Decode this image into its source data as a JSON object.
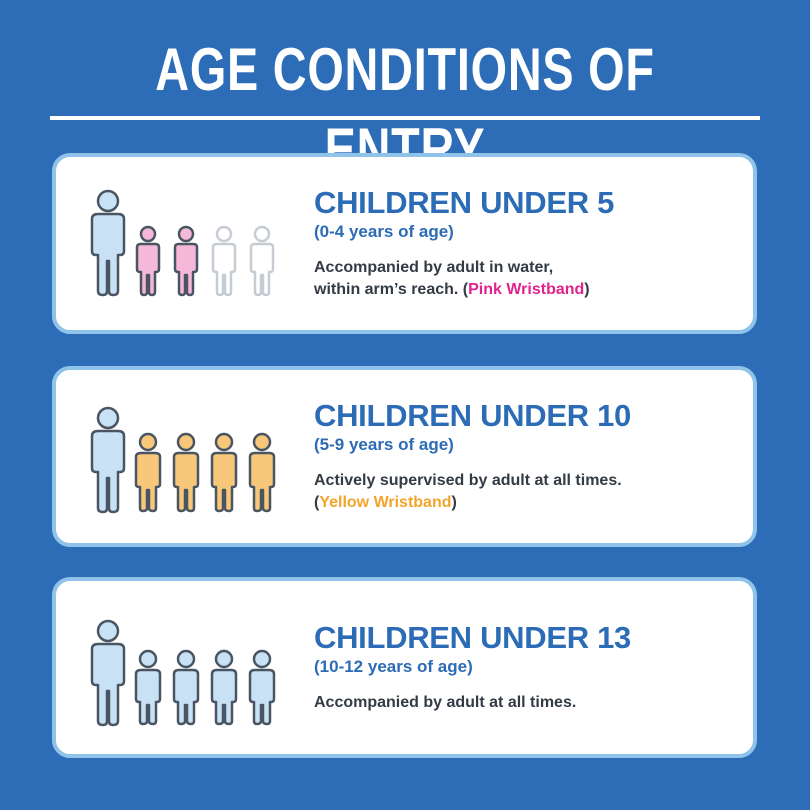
{
  "header": {
    "title": "AGE CONDITIONS OF ENTRY"
  },
  "cards": [
    {
      "title": "CHILDREN UNDER 5",
      "subtitle": "(0-4 years of age)",
      "line1": "Accompanied by adult in water,",
      "line2_prefix": "within arm’s reach.  (",
      "wristband": "Pink Wristband",
      "suffix": ")",
      "wristband_color": "#e0228c",
      "icons": [
        "adult-icon",
        "child-icon-pink",
        "child-icon-pink",
        "child-icon-faded",
        "child-icon-faded"
      ]
    },
    {
      "title": "CHILDREN UNDER 10",
      "subtitle": "(5-9 years of age)",
      "line1": "Actively supervised by adult at all times.",
      "line2_prefix": "(",
      "wristband": "Yellow Wristband",
      "suffix": ")",
      "wristband_color": "#f2a52a",
      "icons": [
        "adult-icon",
        "child-icon-yellow",
        "child-icon-yellow",
        "child-icon-yellow",
        "child-icon-yellow"
      ]
    },
    {
      "title": "CHILDREN UNDER 13",
      "subtitle": "(10-12 years of age)",
      "line1": "Accompanied by adult at all times.",
      "icons": [
        "adult-icon",
        "child-icon-blue",
        "child-icon-blue",
        "child-icon-blue",
        "child-icon-blue"
      ]
    }
  ],
  "colors": {
    "background": "#2d6db8",
    "accent_blue": "#2c6bb5",
    "card_border": "#8fc3ea",
    "adult_fill": "#c9e1f4",
    "pink_fill": "#f6b8d8",
    "yellow_fill": "#f7c77a",
    "blue_fill": "#c9e1f4",
    "faded_fill": "#ffffff"
  }
}
